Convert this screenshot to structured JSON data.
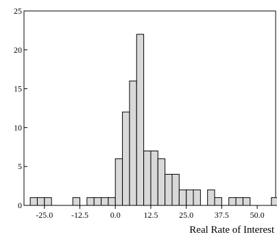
{
  "chart_data": {
    "type": "bar",
    "title": "",
    "xlabel": "Real Rate of Interest",
    "ylabel": "",
    "bin_width": 2.5,
    "bin_starts": [
      -30.0,
      -27.5,
      -25.0,
      -22.5,
      -20.0,
      -17.5,
      -15.0,
      -12.5,
      -10.0,
      -7.5,
      -5.0,
      -2.5,
      0.0,
      2.5,
      5.0,
      7.5,
      10.0,
      12.5,
      15.0,
      17.5,
      20.0,
      22.5,
      25.0,
      27.5,
      30.0,
      32.5,
      35.0,
      37.5,
      40.0,
      42.5,
      45.0,
      47.5,
      50.0,
      52.5,
      55.0
    ],
    "values": [
      1,
      1,
      1,
      0,
      0,
      0,
      1,
      0,
      1,
      1,
      1,
      1,
      6,
      12,
      16,
      22,
      7,
      7,
      6,
      4,
      4,
      2,
      2,
      2,
      0,
      2,
      1,
      0,
      1,
      1,
      1,
      0,
      0,
      0,
      1
    ],
    "xlim": [
      -32.2,
      56.5
    ],
    "ylim": [
      0,
      25
    ],
    "xticks": [
      -25.0,
      -12.5,
      0.0,
      12.5,
      25.0,
      37.5,
      50.0
    ],
    "xtick_labels": [
      "-25.0",
      "-12.5",
      "0.0",
      "12.5",
      "25.0",
      "37.5",
      "50.0"
    ],
    "yticks": [
      0,
      5,
      10,
      15,
      20,
      25
    ],
    "ytick_labels": [
      "0",
      "5",
      "10",
      "15",
      "20",
      "25"
    ],
    "grid": false,
    "bar_fill": "#d9d9d9",
    "bar_stroke": "#000000"
  }
}
